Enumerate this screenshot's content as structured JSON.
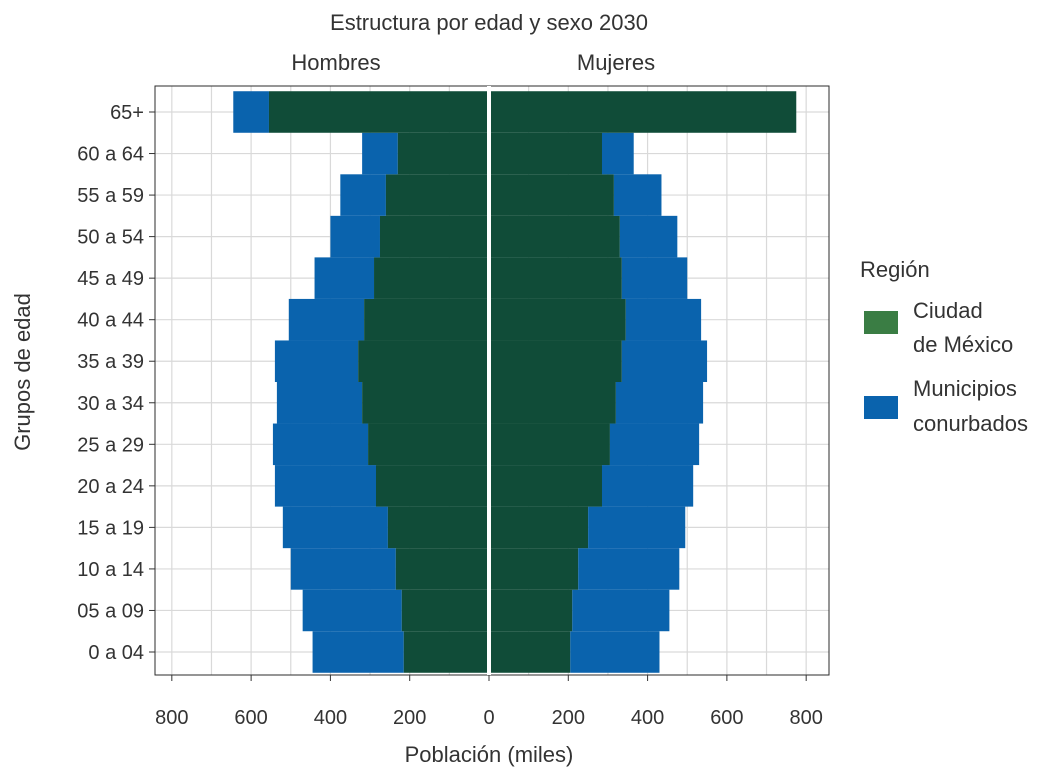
{
  "chart_data": {
    "type": "bar",
    "orientation": "horizontal",
    "title": "Estructura por edad y sexo 2030",
    "facets": [
      "Hombres",
      "Mujeres"
    ],
    "xlabel": "Población (miles)",
    "ylabel": "Grupos de edad",
    "xlim": [
      -850,
      850
    ],
    "xticks": [
      -800,
      -600,
      -400,
      -200,
      0,
      200,
      400,
      600,
      800
    ],
    "xtick_labels": [
      "800",
      "600",
      "400",
      "200",
      "0",
      "200",
      "400",
      "600",
      "800"
    ],
    "grid": true,
    "stacked": true,
    "categories": [
      "0 a 04",
      "05 a 09",
      "10 a 14",
      "15 a 19",
      "20 a 24",
      "25 a 29",
      "30 a 34",
      "35 a 39",
      "40 a 44",
      "45 a 49",
      "50 a 54",
      "55 a 59",
      "60 a 64",
      "65+"
    ],
    "legend": {
      "title": "Región",
      "position": "right",
      "entries": [
        {
          "lines": [
            "Ciudad",
            "de México"
          ],
          "color": "#3a7d44"
        },
        {
          "lines": [
            "Municipios",
            "conurbados"
          ],
          "color": "#0a63ad"
        }
      ]
    },
    "series": [
      {
        "region": "Ciudad de México",
        "color": "#104c38",
        "hombres": [
          215,
          220,
          235,
          255,
          285,
          305,
          320,
          330,
          315,
          290,
          275,
          260,
          230,
          555
        ],
        "mujeres": [
          205,
          210,
          225,
          250,
          285,
          305,
          320,
          335,
          345,
          335,
          330,
          315,
          285,
          775
        ]
      },
      {
        "region": "Municipios conurbados",
        "color": "#0a63ad",
        "hombres": [
          230,
          250,
          265,
          265,
          255,
          240,
          215,
          210,
          190,
          150,
          125,
          115,
          90,
          90
        ],
        "mujeres": [
          225,
          245,
          255,
          245,
          230,
          225,
          220,
          215,
          190,
          165,
          145,
          120,
          80,
          0
        ]
      }
    ]
  }
}
